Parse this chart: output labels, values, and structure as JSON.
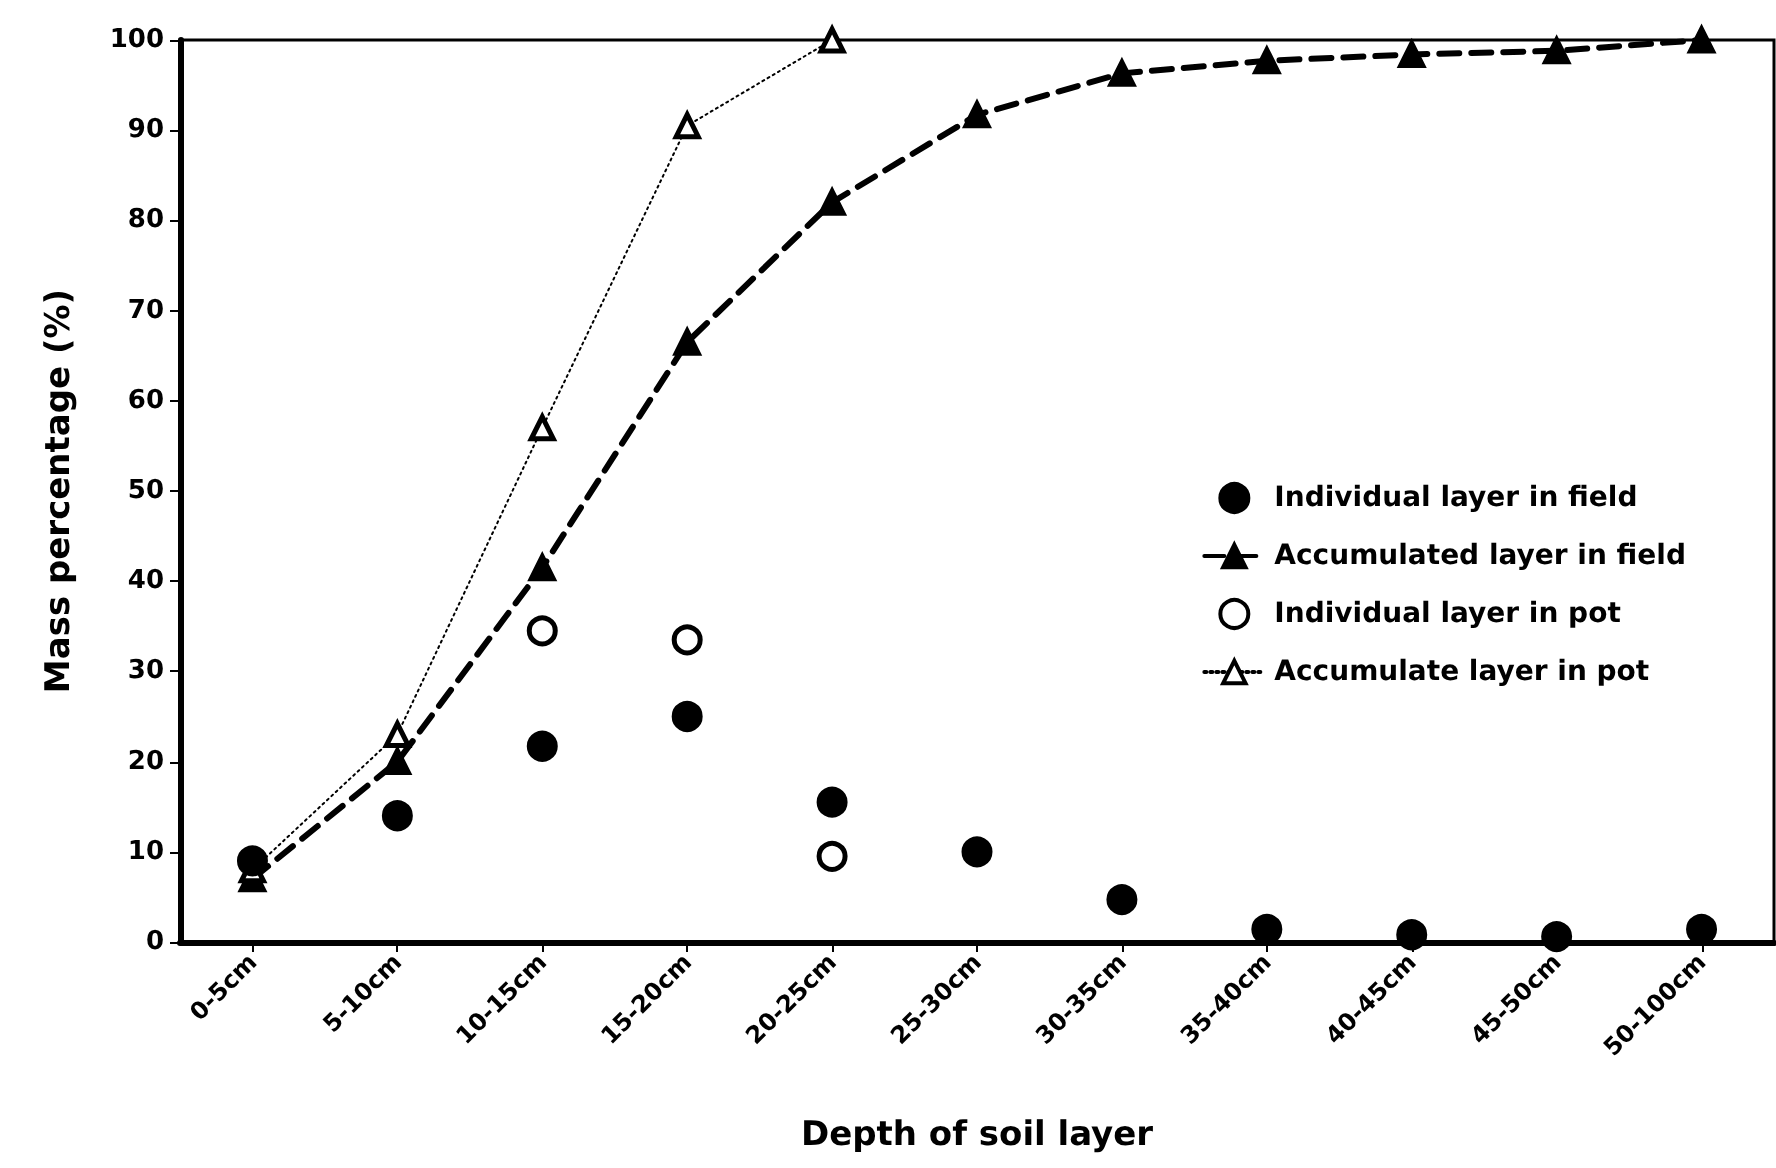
{
  "chart_data": {
    "type": "line",
    "xlabel": "Depth of soil layer",
    "ylabel": "Mass percentage (%)",
    "categories": [
      "0-5cm",
      "5-10cm",
      "10-15cm",
      "15-20cm",
      "20-25cm",
      "25-30cm",
      "30-35cm",
      "35-40cm",
      "40-45cm",
      "45-50cm",
      "50-100cm"
    ],
    "series": [
      {
        "name": "Individual layer in field",
        "type": "scatter",
        "marker": "circle",
        "color": "#000000",
        "values": [
          9,
          14,
          21.7,
          25,
          15.5,
          10,
          4.7,
          1.4,
          0.8,
          0.6,
          1.4
        ]
      },
      {
        "name": "Accumulated layer in field",
        "marker": "triangle",
        "line_style": "dashed",
        "color": "#000000",
        "values": [
          7,
          20,
          41.5,
          66.5,
          82,
          91.7,
          96.3,
          97.7,
          98.4,
          98.8,
          100
        ]
      },
      {
        "name": "Individual layer in pot",
        "type": "scatter",
        "marker": "circle",
        "color": "#ffffff",
        "values": [
          null,
          null,
          34.5,
          33.5,
          9.5,
          null,
          null,
          null,
          null,
          null,
          null
        ]
      },
      {
        "name": "Accumulate layer in pot",
        "marker": "triangle",
        "line_style": "dotted",
        "color": "#ffffff",
        "values": [
          8,
          23,
          57,
          90.5,
          100,
          null,
          null,
          null,
          null,
          null,
          null
        ]
      }
    ],
    "ylim": [
      0,
      100
    ],
    "yticks": [
      0,
      10,
      20,
      30,
      40,
      50,
      60,
      70,
      80,
      90,
      100
    ],
    "grid": false,
    "legend": "right"
  }
}
